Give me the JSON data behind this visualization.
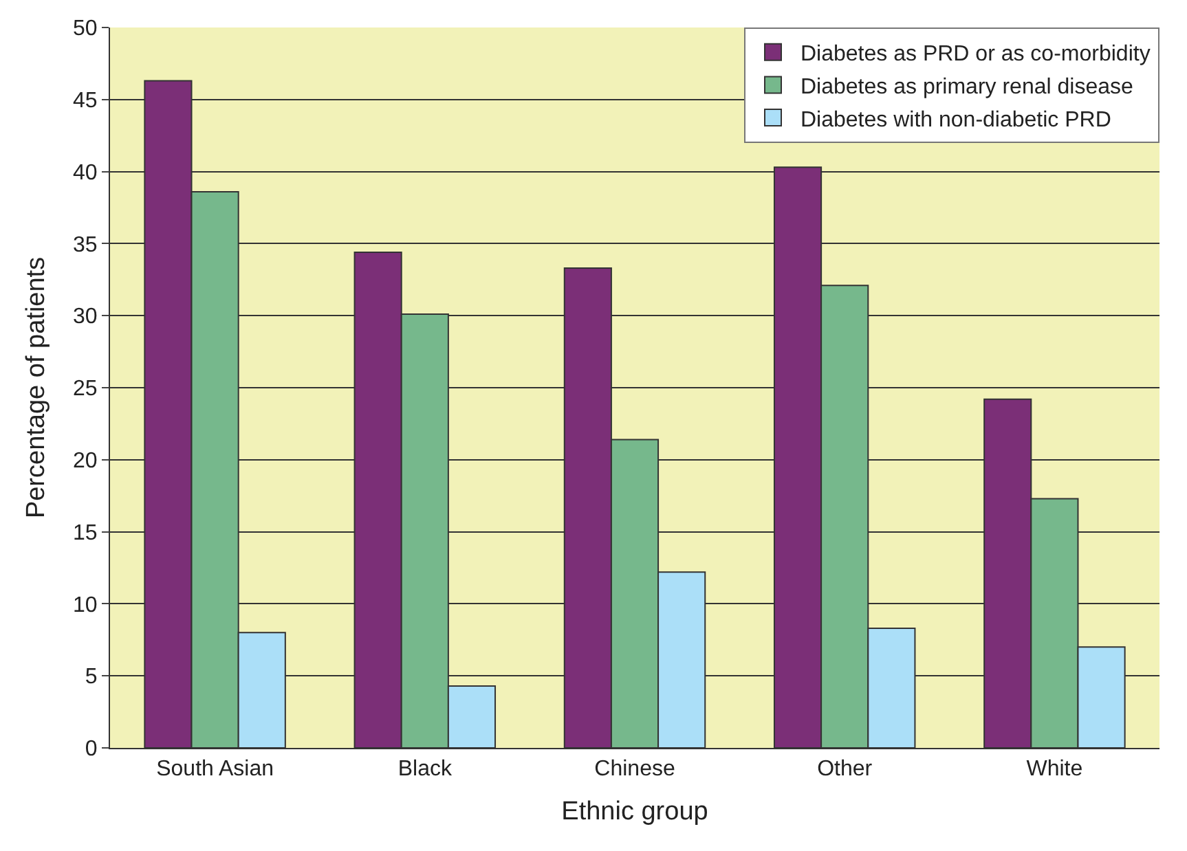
{
  "chart_data": {
    "type": "bar",
    "xlabel": "Ethnic group",
    "ylabel": "Percentage of patients",
    "categories": [
      "South Asian",
      "Black",
      "Chinese",
      "Other",
      "White"
    ],
    "series": [
      {
        "name": "Diabetes as PRD or as co-morbidity",
        "color": "#7b2f77",
        "values": [
          46.3,
          34.4,
          33.3,
          40.3,
          24.2
        ]
      },
      {
        "name": "Diabetes as primary renal disease",
        "color": "#76b88c",
        "values": [
          38.6,
          30.1,
          21.4,
          32.1,
          17.3
        ]
      },
      {
        "name": "Diabetes with non-diabetic PRD",
        "color": "#abdff8",
        "values": [
          8.0,
          4.3,
          12.2,
          8.3,
          7.0
        ]
      }
    ],
    "ylim": [
      0,
      50
    ],
    "yticks": [
      0,
      5,
      10,
      15,
      20,
      25,
      30,
      35,
      40,
      45,
      50
    ],
    "grid": "y",
    "legend": "top right"
  }
}
